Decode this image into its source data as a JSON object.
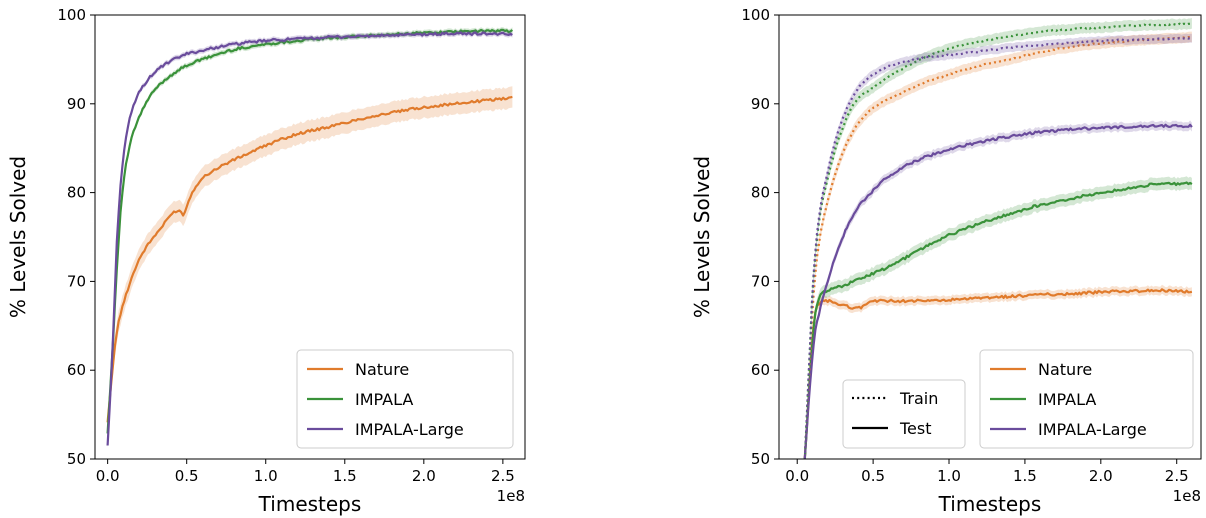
{
  "chart_data": [
    {
      "type": "line",
      "xlabel": "Timesteps",
      "ylabel": "% Levels Solved",
      "x_offset_text": "1e8",
      "xlim": [
        -0.08,
        2.64
      ],
      "ylim": [
        50,
        100
      ],
      "xticks": [
        0.0,
        0.5,
        1.0,
        1.5,
        2.0,
        2.5
      ],
      "xtick_labels": [
        "0.0",
        "0.5",
        "1.0",
        "1.5",
        "2.0",
        "2.5"
      ],
      "yticks": [
        50,
        60,
        70,
        80,
        90,
        100
      ],
      "ytick_labels": [
        "50",
        "60",
        "70",
        "80",
        "90",
        "100"
      ],
      "grid": false,
      "legend_position": "lower right",
      "series": [
        {
          "name": "Nature",
          "color": "#e07b2c",
          "style": "solid",
          "band": 1.2,
          "x": [
            0.0,
            0.03,
            0.06,
            0.1,
            0.15,
            0.2,
            0.25,
            0.3,
            0.35,
            0.4,
            0.45,
            0.48,
            0.5,
            0.55,
            0.6,
            0.7,
            0.8,
            0.9,
            1.0,
            1.1,
            1.2,
            1.4,
            1.6,
            1.8,
            2.0,
            2.2,
            2.4,
            2.56
          ],
          "y": [
            54.0,
            60.0,
            64.5,
            67.5,
            70.3,
            72.5,
            74.0,
            75.2,
            76.3,
            77.5,
            78.0,
            77.5,
            78.5,
            80.5,
            81.6,
            82.8,
            83.7,
            84.5,
            85.3,
            86.0,
            86.6,
            87.4,
            88.3,
            89.0,
            89.6,
            90.0,
            90.4,
            90.7
          ]
        },
        {
          "name": "IMPALA",
          "color": "#3a923a",
          "style": "solid",
          "band": 0.3,
          "x": [
            0.0,
            0.03,
            0.06,
            0.09,
            0.12,
            0.15,
            0.2,
            0.25,
            0.3,
            0.4,
            0.5,
            0.6,
            0.7,
            0.8,
            1.0,
            1.2,
            1.4,
            1.6,
            1.8,
            2.0,
            2.2,
            2.4,
            2.56
          ],
          "y": [
            53.0,
            62.0,
            72.0,
            79.5,
            83.5,
            86.0,
            88.5,
            90.3,
            91.6,
            93.2,
            94.3,
            95.0,
            95.6,
            96.1,
            96.7,
            97.1,
            97.4,
            97.6,
            97.8,
            98.0,
            98.1,
            98.2,
            98.2
          ]
        },
        {
          "name": "IMPALA-Large",
          "color": "#6a4c9c",
          "style": "solid",
          "band": 0.3,
          "x": [
            0.0,
            0.03,
            0.06,
            0.09,
            0.12,
            0.15,
            0.2,
            0.25,
            0.3,
            0.4,
            0.5,
            0.6,
            0.7,
            0.8,
            1.0,
            1.2,
            1.4,
            1.6,
            1.8,
            2.0,
            2.2,
            2.4,
            2.56
          ],
          "y": [
            51.5,
            62.0,
            75.0,
            82.5,
            86.5,
            89.0,
            91.3,
            92.6,
            93.6,
            94.8,
            95.6,
            96.0,
            96.4,
            96.7,
            97.1,
            97.3,
            97.5,
            97.6,
            97.7,
            97.8,
            97.9,
            97.9,
            97.8
          ]
        }
      ]
    },
    {
      "type": "line",
      "xlabel": "Timesteps",
      "ylabel": "% Levels Solved",
      "x_offset_text": "1e8",
      "xlim": [
        -0.12,
        2.66
      ],
      "ylim": [
        50,
        100
      ],
      "xticks": [
        0.0,
        0.5,
        1.0,
        1.5,
        2.0,
        2.5
      ],
      "xtick_labels": [
        "0.0",
        "0.5",
        "1.0",
        "1.5",
        "2.0",
        "2.5"
      ],
      "yticks": [
        50,
        60,
        70,
        80,
        90,
        100
      ],
      "ytick_labels": [
        "50",
        "60",
        "70",
        "80",
        "90",
        "100"
      ],
      "grid": false,
      "legend_position": "lower right",
      "style_legend": {
        "position": "lower center",
        "entries": [
          {
            "label": "Train",
            "style": "dotted"
          },
          {
            "label": "Test",
            "style": "solid"
          }
        ]
      },
      "series": [
        {
          "name": "Nature",
          "split": "Test",
          "color": "#e07b2c",
          "style": "solid",
          "band": 0.5,
          "x": [
            0.05,
            0.08,
            0.1,
            0.12,
            0.15,
            0.2,
            0.3,
            0.4,
            0.5,
            0.6,
            0.8,
            1.0,
            1.2,
            1.4,
            1.6,
            1.8,
            2.0,
            2.2,
            2.4,
            2.6
          ],
          "y": [
            50,
            58,
            63.5,
            66.5,
            67.6,
            67.8,
            67.3,
            67.0,
            67.8,
            67.8,
            67.8,
            67.9,
            68.1,
            68.3,
            68.5,
            68.6,
            68.8,
            68.9,
            69.0,
            68.8
          ]
        },
        {
          "name": "IMPALA",
          "split": "Test",
          "color": "#3a923a",
          "style": "solid",
          "band": 0.7,
          "x": [
            0.05,
            0.08,
            0.1,
            0.12,
            0.15,
            0.2,
            0.3,
            0.4,
            0.5,
            0.6,
            0.8,
            1.0,
            1.2,
            1.4,
            1.6,
            1.8,
            2.0,
            2.2,
            2.4,
            2.6
          ],
          "y": [
            50,
            58,
            63,
            66.5,
            68.3,
            69.0,
            69.5,
            70.2,
            70.9,
            71.6,
            73.5,
            75.2,
            76.5,
            77.6,
            78.6,
            79.3,
            80.0,
            80.5,
            81.0,
            81.0
          ]
        },
        {
          "name": "IMPALA-Large",
          "split": "Test",
          "color": "#6a4c9c",
          "style": "solid",
          "band": 0.5,
          "x": [
            0.05,
            0.08,
            0.1,
            0.12,
            0.15,
            0.2,
            0.25,
            0.3,
            0.4,
            0.5,
            0.6,
            0.8,
            1.0,
            1.2,
            1.4,
            1.6,
            1.8,
            2.0,
            2.2,
            2.4,
            2.6
          ],
          "y": [
            50,
            57.5,
            61.5,
            64.5,
            66.8,
            70.0,
            72.7,
            75.0,
            78.3,
            80.2,
            81.8,
            83.7,
            84.8,
            85.7,
            86.3,
            86.8,
            87.1,
            87.3,
            87.4,
            87.5,
            87.5
          ]
        },
        {
          "name": "Nature",
          "split": "Train",
          "color": "#e07b2c",
          "style": "dotted",
          "band": 0.6,
          "x": [
            0.05,
            0.08,
            0.1,
            0.12,
            0.15,
            0.2,
            0.25,
            0.3,
            0.35,
            0.4,
            0.5,
            0.6,
            0.7,
            0.8,
            1.0,
            1.2,
            1.4,
            1.6,
            1.8,
            2.0,
            2.2,
            2.4,
            2.6
          ],
          "y": [
            50,
            60,
            66.5,
            71.0,
            75.0,
            79.0,
            82.0,
            84.5,
            86.3,
            87.8,
            89.5,
            90.5,
            91.3,
            92.1,
            93.3,
            94.3,
            95.0,
            95.8,
            96.4,
            96.8,
            97.1,
            97.3,
            97.5
          ]
        },
        {
          "name": "IMPALA",
          "split": "Train",
          "color": "#3a923a",
          "style": "dotted",
          "band": 0.6,
          "x": [
            0.05,
            0.08,
            0.1,
            0.12,
            0.15,
            0.2,
            0.25,
            0.3,
            0.35,
            0.4,
            0.5,
            0.6,
            0.7,
            0.8,
            1.0,
            1.2,
            1.4,
            1.6,
            1.8,
            2.0,
            2.2,
            2.4,
            2.6
          ],
          "y": [
            50,
            61,
            68.5,
            73.0,
            77.5,
            81.5,
            84.8,
            87.3,
            89.3,
            90.6,
            91.8,
            93.0,
            94.0,
            94.9,
            96.2,
            97.0,
            97.6,
            98.1,
            98.4,
            98.6,
            98.8,
            98.9,
            99.0
          ]
        },
        {
          "name": "IMPALA-Large",
          "split": "Train",
          "color": "#6a4c9c",
          "style": "dotted",
          "band": 0.5,
          "x": [
            0.05,
            0.08,
            0.1,
            0.12,
            0.15,
            0.2,
            0.25,
            0.3,
            0.35,
            0.4,
            0.5,
            0.6,
            0.7,
            0.8,
            1.0,
            1.2,
            1.4,
            1.6,
            1.8,
            2.0,
            2.2,
            2.4,
            2.6
          ],
          "y": [
            50,
            61,
            68.5,
            73.5,
            78.0,
            82.3,
            85.8,
            88.3,
            90.3,
            91.7,
            93.3,
            94.2,
            94.7,
            95.1,
            95.5,
            95.9,
            96.3,
            96.6,
            96.9,
            97.1,
            97.2,
            97.3,
            97.4
          ]
        }
      ]
    }
  ]
}
